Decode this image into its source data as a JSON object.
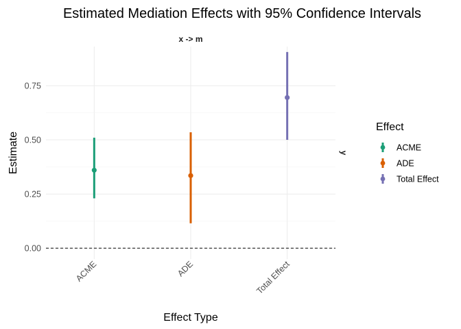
{
  "chart_data": {
    "type": "errorbar",
    "title": "Estimated Mediation Effects with 95% Confidence Intervals",
    "facet_label": "x -> m",
    "right_strip_label": "y",
    "xlabel": "Effect Type",
    "ylabel": "Estimate",
    "categories": [
      "ACME",
      "ADE",
      "Total Effect"
    ],
    "estimates": [
      0.36,
      0.335,
      0.695
    ],
    "ci_lower": [
      0.23,
      0.115,
      0.5
    ],
    "ci_upper": [
      0.51,
      0.535,
      0.905
    ],
    "colors": [
      "#1b9e77",
      "#d95f02",
      "#7570b3"
    ],
    "ylim": [
      -0.05,
      0.93
    ],
    "yticks": [
      0.0,
      0.25,
      0.5,
      0.75
    ],
    "ytick_labels": [
      "0.00",
      "0.25",
      "0.50",
      "0.75"
    ],
    "reference_line": 0.0,
    "grid": true,
    "legend": {
      "title": "Effect",
      "position": "right",
      "entries": [
        "ACME",
        "ADE",
        "Total Effect"
      ]
    }
  }
}
